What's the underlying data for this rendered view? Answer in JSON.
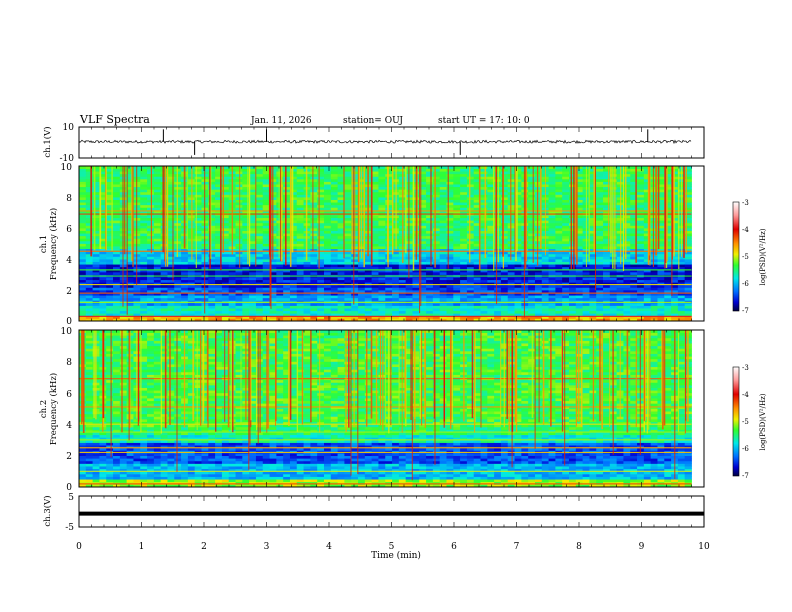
{
  "chart_data": {
    "type": "heatmap",
    "title": "VLF Spectra",
    "date": "Jan. 11, 2026",
    "station": "station= OUJ",
    "start_ut": "start  UT =  17: 10: 0",
    "time_axis": {
      "label": "Time  (min)",
      "range": [
        0,
        10
      ],
      "ticks": [
        "0",
        "1",
        "2",
        "3",
        "4",
        "5",
        "6",
        "7",
        "8",
        "9",
        "10"
      ]
    },
    "waveform_ch1": {
      "ylabel": "ch.1(V)",
      "range": [
        -10,
        10
      ],
      "tick_labels": [
        "10",
        "-10"
      ],
      "baseline_v": 0.5,
      "noise_v": 0.9,
      "spike_times_min": [
        1.35,
        1.85,
        3.0,
        6.1,
        9.1
      ]
    },
    "spectrogram_ch1": {
      "ylabel_channel": "ch.1",
      "ylabel": "Frequency  (kHz)",
      "freq_range_khz": [
        0,
        10
      ],
      "freq_ticks": [
        "0",
        "2",
        "4",
        "6",
        "8",
        "10"
      ],
      "colorbar_label": "log(PSD)(V²/Hz)",
      "colorbar_range": [
        -7,
        -3
      ],
      "colorbar_ticks": [
        "-3",
        "-4",
        "-5",
        "-6",
        "-7"
      ]
    },
    "spectrogram_ch2": {
      "ylabel_channel": "ch.2",
      "ylabel": "Frequency  (kHz)",
      "freq_range_khz": [
        0,
        10
      ],
      "freq_ticks": [
        "0",
        "2",
        "4",
        "6",
        "8",
        "10"
      ],
      "colorbar_label": "log(PSD)(V²/Hz)",
      "colorbar_range": [
        -7,
        -3
      ],
      "colorbar_ticks": [
        "-3",
        "-4",
        "-5",
        "-6",
        "-7"
      ]
    },
    "waveform_ch3": {
      "ylabel": "ch.3(V)",
      "range": [
        -5,
        5
      ],
      "tick_labels": [
        "5",
        "-5"
      ],
      "level_v": -0.7
    }
  }
}
